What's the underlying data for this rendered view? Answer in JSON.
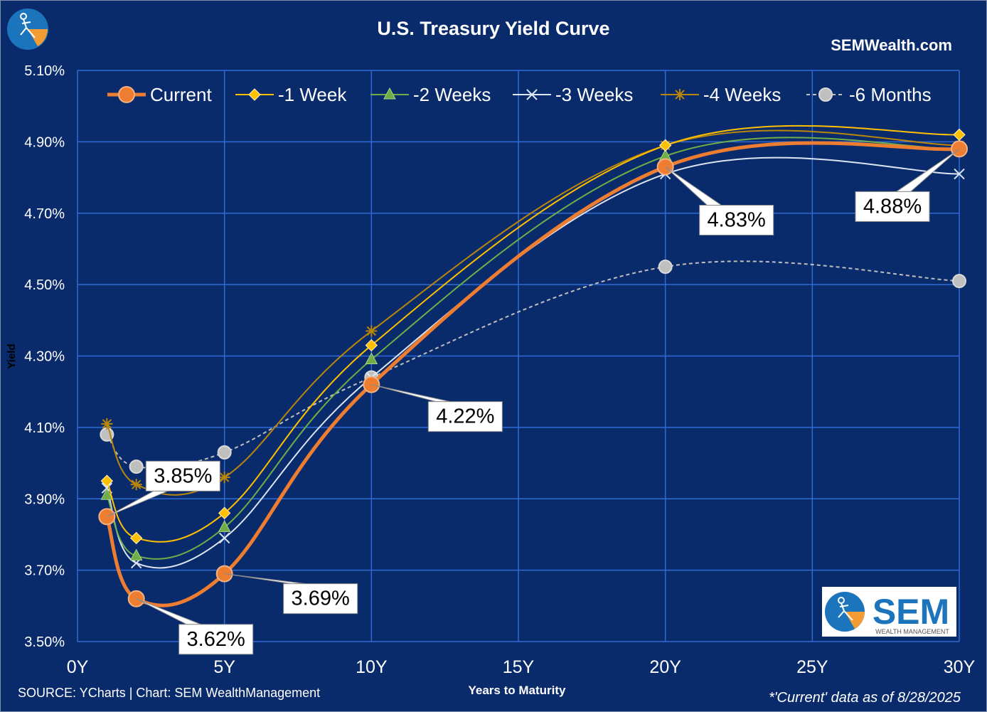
{
  "chart_data": {
    "type": "line",
    "title": "U.S. Treasury Yield Curve",
    "brand": "SEMWealth.com",
    "xlabel": "Years to Maturity",
    "ylabel": "Yield",
    "x_ticks": [
      0,
      5,
      10,
      15,
      20,
      25,
      30
    ],
    "x_tick_labels": [
      "0Y",
      "5Y",
      "10Y",
      "15Y",
      "20Y",
      "25Y",
      "30Y"
    ],
    "y_ticks": [
      3.5,
      3.7,
      3.9,
      4.1,
      4.3,
      4.5,
      4.7,
      4.9,
      5.1
    ],
    "y_tick_labels": [
      "3.50%",
      "3.70%",
      "3.90%",
      "4.10%",
      "4.30%",
      "4.50%",
      "4.70%",
      "4.90%",
      "5.10%"
    ],
    "xlim": [
      0,
      30
    ],
    "ylim": [
      3.5,
      5.1
    ],
    "grid": true,
    "legend_position": "top",
    "x": [
      1,
      2,
      5,
      10,
      20,
      30
    ],
    "series": [
      {
        "name": "-6 Months",
        "values": [
          4.08,
          3.99,
          4.03,
          4.24,
          4.55,
          4.51
        ],
        "color": "#bfbfbf",
        "marker": "circle",
        "dashed": true
      },
      {
        "name": "-4 Weeks",
        "values": [
          4.11,
          3.94,
          3.96,
          4.37,
          4.89,
          4.89
        ],
        "color": "#b8860b",
        "marker": "star",
        "dashed": false
      },
      {
        "name": "-3 Weeks",
        "values": [
          3.93,
          3.72,
          3.79,
          4.24,
          4.81,
          4.81
        ],
        "color": "#dce6f2",
        "marker": "x",
        "dashed": false
      },
      {
        "name": "-2 Weeks",
        "values": [
          3.91,
          3.74,
          3.82,
          4.29,
          4.86,
          4.88
        ],
        "color": "#70ad47",
        "marker": "triangle",
        "dashed": false
      },
      {
        "name": "-1 Week",
        "values": [
          3.95,
          3.79,
          3.86,
          4.33,
          4.89,
          4.92
        ],
        "color": "#ffc000",
        "marker": "diamond",
        "dashed": false
      },
      {
        "name": "Current",
        "values": [
          3.85,
          3.62,
          3.69,
          4.22,
          4.83,
          4.88
        ],
        "color": "#ed7d31",
        "marker": "circle",
        "dashed": false
      }
    ],
    "legend_order": [
      "Current",
      "-1 Week",
      "-2 Weeks",
      "-3 Weeks",
      "-4 Weeks",
      "-6 Months"
    ],
    "annotations": [
      {
        "x": 1,
        "value": 3.85,
        "text": "3.85%"
      },
      {
        "x": 2,
        "value": 3.62,
        "text": "3.62%"
      },
      {
        "x": 5,
        "value": 3.69,
        "text": "3.69%"
      },
      {
        "x": 10,
        "value": 4.22,
        "text": "4.22%"
      },
      {
        "x": 20,
        "value": 4.83,
        "text": "4.83%"
      },
      {
        "x": 30,
        "value": 4.88,
        "text": "4.88%"
      }
    ]
  },
  "footer": {
    "source": "SOURCE: YCharts | Chart: SEM WealthManagement",
    "asof": "*'Current' data as of 8/28/2025"
  },
  "logo": {
    "name": "SEM",
    "tagline": "WEALTH MANAGEMENT"
  },
  "colors": {
    "background": "#0a2b6b",
    "grid": "#2f6bd6",
    "text": "#ffffff",
    "logo_blue": "#1c75bc",
    "logo_orange": "#f39c33"
  }
}
